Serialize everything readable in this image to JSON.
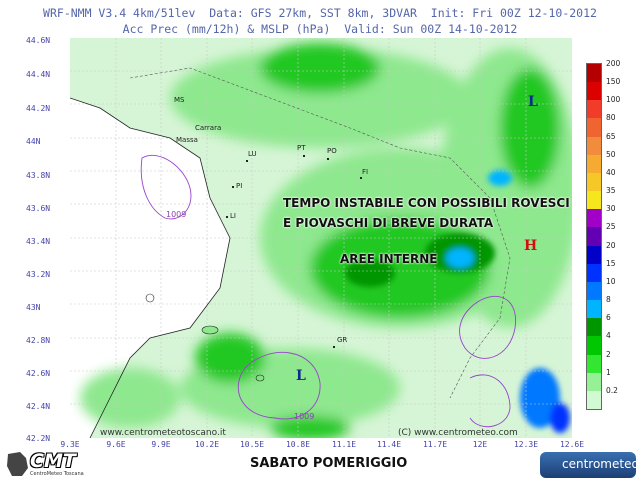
{
  "header": {
    "line1": "WRF-NMM V3.4 4km/51lev  Data: GFS 27km, SST 8km, 3DVAR  Init: Fri 00Z 12-10-2012",
    "line2": "Acc Prec (mm/12h) & MSLP (hPa)  Valid: Sun 00Z 14-10-2012"
  },
  "axes": {
    "lat_labels": [
      "44.6N",
      "44.4N",
      "44.2N",
      "44N",
      "43.8N",
      "43.6N",
      "43.4N",
      "43.2N",
      "43N",
      "42.8N",
      "42.6N",
      "42.4N",
      "42.2N"
    ],
    "lon_labels": [
      "9.3E",
      "9.6E",
      "9.9E",
      "10.2E",
      "10.5E",
      "10.8E",
      "11.1E",
      "11.4E",
      "11.7E",
      "12E",
      "12.3E",
      "12.6E"
    ]
  },
  "scale": {
    "values": [
      "200",
      "150",
      "100",
      "80",
      "65",
      "50",
      "40",
      "35",
      "30",
      "25",
      "20",
      "15",
      "10",
      "8",
      "6",
      "4",
      "2",
      "1",
      "0.2"
    ],
    "colors": [
      "#b40000",
      "#dc0000",
      "#f03c28",
      "#f06432",
      "#f08c3c",
      "#f5aa32",
      "#f5c828",
      "#f5e61e",
      "#a000c8",
      "#6400b4",
      "#0000c8",
      "#0032ff",
      "#0078ff",
      "#00b4ff",
      "#009600",
      "#00c800",
      "#32e632",
      "#96f096",
      "#d2fad2"
    ]
  },
  "annotations": {
    "line1": "TEMPO INSTABILE CON POSSIBILI ROVESCI",
    "line2": "E PIOVASCHI DI BREVE DURATA",
    "line3": "AREE INTERNE"
  },
  "cities": [
    {
      "name": "MS"
    },
    {
      "name": "Carrara"
    },
    {
      "name": "Massa"
    },
    {
      "name": "LU"
    },
    {
      "name": "PI"
    },
    {
      "name": "LI"
    },
    {
      "name": "PT"
    },
    {
      "name": "PO"
    },
    {
      "name": "FI"
    },
    {
      "name": "GR"
    }
  ],
  "pressure": {
    "p1": "1009",
    "p2": "1009",
    "low1": "L",
    "low2": "L",
    "high": "H"
  },
  "url_left": "www.centrometeotoscano.it",
  "url_right": "(C) www.centrometeo.com",
  "footer": {
    "cmt": "CMT",
    "cmt_sub": "CentroMeteo Toscana",
    "title": "SABATO POMERIGGIO",
    "brand": "centrometeo"
  }
}
